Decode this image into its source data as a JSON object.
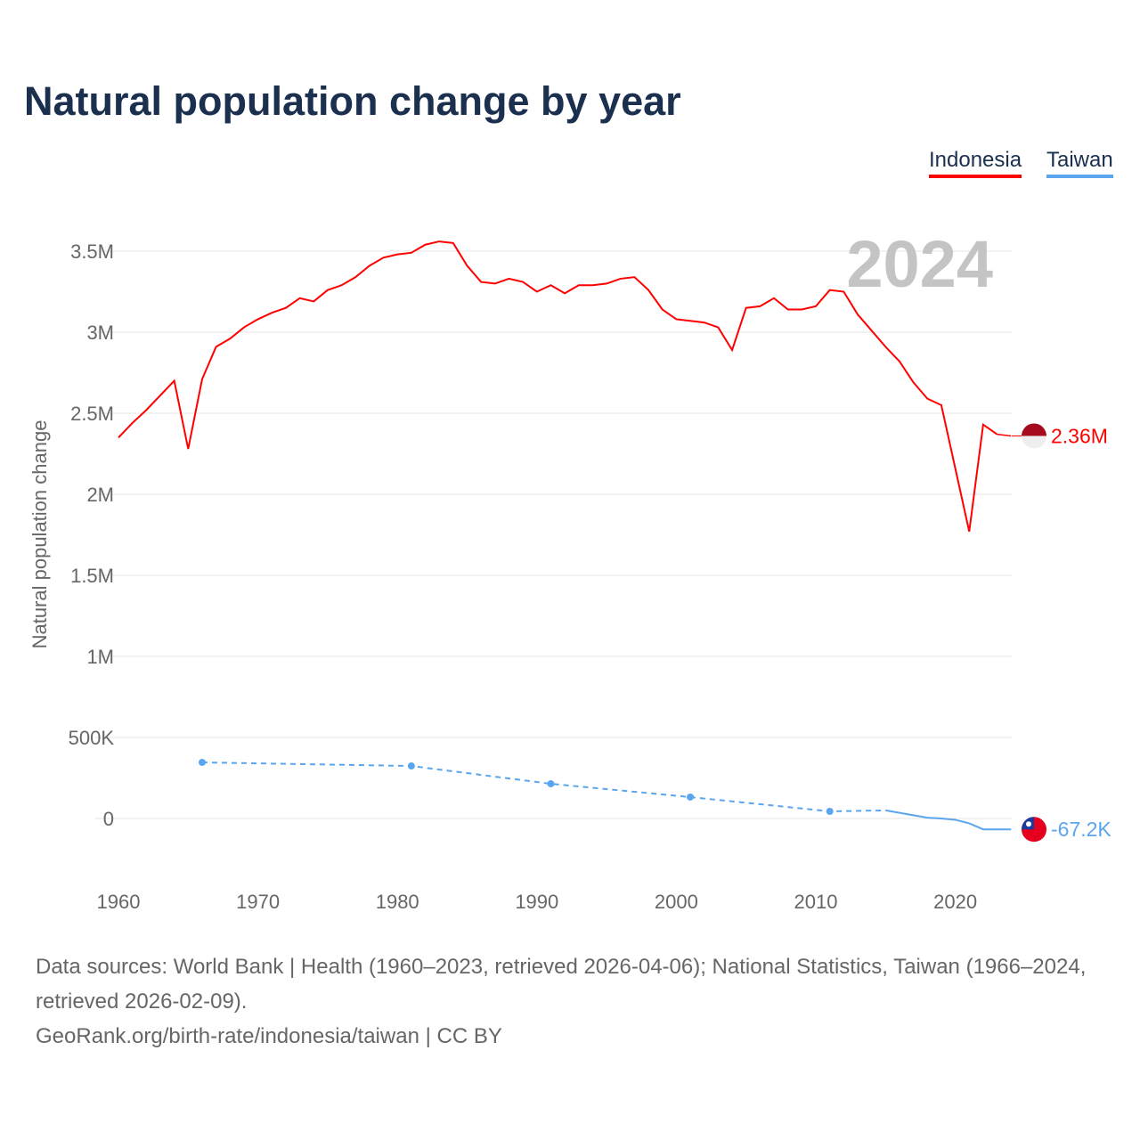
{
  "chart_data": {
    "type": "line",
    "title": "Natural population change by year",
    "xlabel": "",
    "ylabel": "Natural population change",
    "xlim": [
      1960,
      2024
    ],
    "ylim": [
      -200000,
      3700000
    ],
    "x_ticks": [
      1960,
      1970,
      1980,
      1990,
      2000,
      2010,
      2020
    ],
    "x_tick_labels": [
      "1960",
      "1970",
      "1980",
      "1990",
      "2000",
      "2010",
      "2020"
    ],
    "y_ticks": [
      0,
      500000,
      1000000,
      1500000,
      2000000,
      2500000,
      3000000,
      3500000
    ],
    "y_tick_labels": [
      "0",
      "500K",
      "1M",
      "1.5M",
      "2M",
      "2.5M",
      "3M",
      "3.5M"
    ],
    "grid": true,
    "legend_position": "top-right",
    "year_watermark": "2024",
    "series": [
      {
        "name": "Indonesia",
        "color": "#ff0000",
        "end_label": "2.36M",
        "x": [
          1960,
          1961,
          1962,
          1963,
          1964,
          1965,
          1966,
          1967,
          1968,
          1969,
          1970,
          1971,
          1972,
          1973,
          1974,
          1975,
          1976,
          1977,
          1978,
          1979,
          1980,
          1981,
          1982,
          1983,
          1984,
          1985,
          1986,
          1987,
          1988,
          1989,
          1990,
          1991,
          1992,
          1993,
          1994,
          1995,
          1996,
          1997,
          1998,
          1999,
          2000,
          2001,
          2002,
          2003,
          2004,
          2005,
          2006,
          2007,
          2008,
          2009,
          2010,
          2011,
          2012,
          2013,
          2014,
          2015,
          2016,
          2017,
          2018,
          2019,
          2020,
          2021,
          2022,
          2023,
          2024
        ],
        "values": [
          2350000,
          2440000,
          2520000,
          2610000,
          2700000,
          2280000,
          2710000,
          2910000,
          2960000,
          3030000,
          3080000,
          3120000,
          3150000,
          3210000,
          3190000,
          3260000,
          3290000,
          3340000,
          3410000,
          3460000,
          3480000,
          3490000,
          3540000,
          3560000,
          3550000,
          3410000,
          3310000,
          3300000,
          3330000,
          3310000,
          3250000,
          3290000,
          3240000,
          3290000,
          3290000,
          3300000,
          3330000,
          3340000,
          3260000,
          3140000,
          3080000,
          3070000,
          3060000,
          3030000,
          2890000,
          3150000,
          3160000,
          3210000,
          3140000,
          3140000,
          3160000,
          3260000,
          3250000,
          3110000,
          3010000,
          2910000,
          2820000,
          2690000,
          2590000,
          2550000,
          2160000,
          1770000,
          2430000,
          2370000,
          2360000
        ]
      },
      {
        "name": "Taiwan",
        "color": "#5aa6ee",
        "end_label": "-67.2K",
        "x": [
          1966,
          1981,
          1991,
          2001,
          2011,
          2015,
          2016,
          2017,
          2018,
          2019,
          2020,
          2021,
          2022,
          2023,
          2024
        ],
        "values": [
          346000,
          324000,
          214000,
          132000,
          44000,
          50000,
          35000,
          20000,
          5000,
          0,
          -8000,
          -30000,
          -67000,
          -67000,
          -67200
        ]
      }
    ]
  },
  "footer": {
    "sources": "Data sources: World Bank | Health (1960–2023, retrieved 2026-04-06); National Statistics, Taiwan (1966–2024, retrieved 2026-02-09).",
    "attribution": "GeoRank.org/birth-rate/indonesia/taiwan | CC BY"
  }
}
